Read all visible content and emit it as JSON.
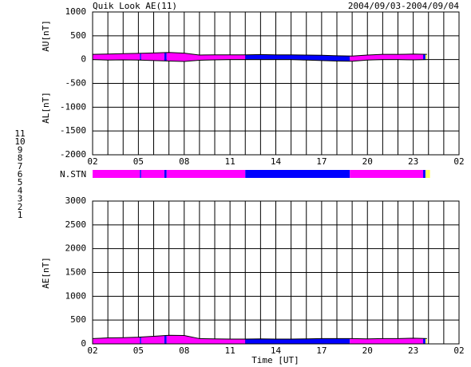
{
  "title": "Quik Look AE(11)",
  "date_range": "2004/09/03-2004/09/04",
  "station_legend": [
    {
      "label": "11",
      "color": "#00ffff"
    },
    {
      "label": "10",
      "color": "#ff00ff"
    },
    {
      "label": "9",
      "color": "#0000ff"
    },
    {
      "label": "8",
      "color": "#ffff60"
    },
    {
      "label": "7",
      "color": "#a0f0a0"
    },
    {
      "label": "6",
      "color": "#ff0000"
    },
    {
      "label": "5",
      "color": "#c8c8c8"
    },
    {
      "label": "4",
      "color": "#909090"
    },
    {
      "label": "3",
      "color": "#20a0a0"
    },
    {
      "label": "2",
      "color": "#a000a0"
    },
    {
      "label": "1",
      "color": "#0000c0"
    }
  ],
  "chart_data": [
    {
      "type": "line",
      "y_labels": [
        "AU[nT]",
        "AL[nT]"
      ],
      "x": [
        0,
        1,
        2,
        3,
        4,
        5,
        6,
        7,
        8,
        9,
        10,
        11,
        12,
        13,
        14,
        15,
        16,
        17,
        18,
        19,
        20,
        21,
        21.9
      ],
      "series": [
        {
          "color": "#000000",
          "values": [
            110,
            115,
            125,
            130,
            140,
            150,
            135,
            95,
            100,
            100,
            100,
            105,
            100,
            100,
            95,
            90,
            80,
            75,
            95,
            110,
            110,
            115,
            110
          ]
        },
        {
          "color": "#000000",
          "values": [
            0,
            -10,
            -5,
            -10,
            -20,
            -30,
            -40,
            -15,
            -5,
            0,
            0,
            0,
            0,
            0,
            -10,
            -20,
            -30,
            -35,
            -10,
            0,
            0,
            -5,
            0
          ]
        }
      ],
      "xlim": [
        0,
        24
      ],
      "xticks": [
        {
          "value": 0,
          "label": "02"
        },
        {
          "value": 3,
          "label": "05"
        },
        {
          "value": 6,
          "label": "08"
        },
        {
          "value": 9,
          "label": "11"
        },
        {
          "value": 12,
          "label": "14"
        },
        {
          "value": 15,
          "label": "17"
        },
        {
          "value": 18,
          "label": "20"
        },
        {
          "value": 21,
          "label": "23"
        },
        {
          "value": 24,
          "label": "02"
        }
      ],
      "xgrid": [
        0,
        1,
        2,
        3,
        4,
        5,
        6,
        7,
        8,
        9,
        10,
        11,
        12,
        13,
        14,
        15,
        16,
        17,
        18,
        19,
        20,
        21,
        22,
        23,
        24
      ],
      "ylim": [
        -2000,
        1000
      ],
      "yticks": [
        1000,
        500,
        0,
        -500,
        -1000,
        -1500,
        -2000
      ]
    },
    {
      "type": "stations",
      "label": "N.STN",
      "xlim": [
        0,
        24
      ],
      "segments": [
        {
          "start": 0,
          "end": 3.1,
          "stations": 10
        },
        {
          "start": 3.1,
          "end": 3.18,
          "stations": 9
        },
        {
          "start": 3.18,
          "end": 4.7,
          "stations": 10
        },
        {
          "start": 4.7,
          "end": 4.85,
          "stations": 9
        },
        {
          "start": 4.85,
          "end": 10.0,
          "stations": 10
        },
        {
          "start": 10.0,
          "end": 16.85,
          "stations": 9
        },
        {
          "start": 16.85,
          "end": 21.65,
          "stations": 10
        },
        {
          "start": 21.65,
          "end": 21.8,
          "stations": 9
        },
        {
          "start": 21.8,
          "end": 22.1,
          "stations": 8
        }
      ]
    },
    {
      "type": "area",
      "y_label": "AE[nT]",
      "x_label": "Time [UT]",
      "x": [
        0,
        1,
        2,
        3,
        4,
        5,
        6,
        7,
        8,
        9,
        10,
        11,
        12,
        13,
        14,
        15,
        16,
        17,
        18,
        19,
        20,
        21,
        21.9
      ],
      "series": [
        {
          "color": "#000000",
          "values": [
            110,
            125,
            130,
            140,
            160,
            180,
            175,
            110,
            105,
            100,
            100,
            105,
            100,
            100,
            105,
            110,
            110,
            110,
            105,
            110,
            110,
            120,
            110
          ]
        }
      ],
      "xlim": [
        0,
        24
      ],
      "xticks": [
        {
          "value": 0,
          "label": "02"
        },
        {
          "value": 3,
          "label": "05"
        },
        {
          "value": 6,
          "label": "08"
        },
        {
          "value": 9,
          "label": "11"
        },
        {
          "value": 12,
          "label": "14"
        },
        {
          "value": 15,
          "label": "17"
        },
        {
          "value": 18,
          "label": "20"
        },
        {
          "value": 21,
          "label": "23"
        },
        {
          "value": 24,
          "label": "02"
        }
      ],
      "xgrid": [
        0,
        1,
        2,
        3,
        4,
        5,
        6,
        7,
        8,
        9,
        10,
        11,
        12,
        13,
        14,
        15,
        16,
        17,
        18,
        19,
        20,
        21,
        22,
        23,
        24
      ],
      "ylim": [
        0,
        3000
      ],
      "yticks": [
        3000,
        2500,
        2000,
        1500,
        1000,
        500,
        0
      ]
    }
  ]
}
